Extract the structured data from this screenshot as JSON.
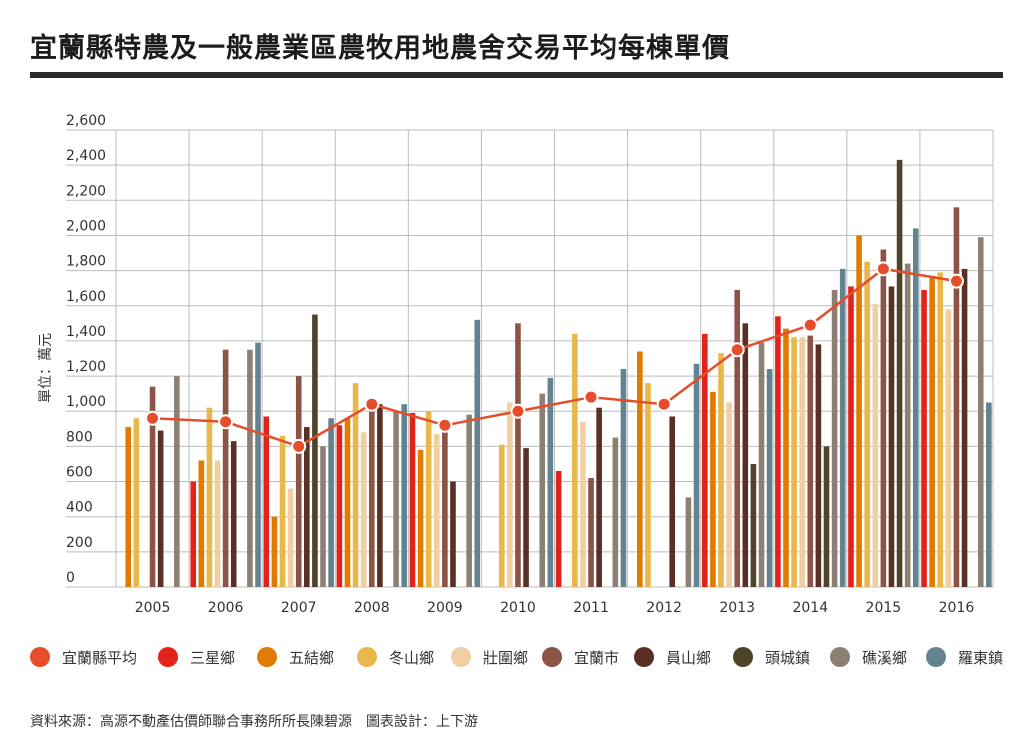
{
  "title": "宜蘭縣特農及一般農業區農牧用地農舍交易平均每棟單價",
  "source": "資料來源：高源不動產估價師聯合事務所所長陳碧源　圖表設計：上下游",
  "chart_data": {
    "type": "bar",
    "title": "宜蘭縣特農及一般農業區農牧用地農舍交易平均每棟單價",
    "ylabel": "單位：萬元",
    "xlabel": "",
    "ylim": [
      0,
      2600
    ],
    "yticks": [
      0,
      200,
      400,
      600,
      800,
      1000,
      1200,
      1400,
      1600,
      1800,
      2000,
      2200,
      2400,
      2600
    ],
    "ytick_labels": [
      "0",
      "200",
      "400",
      "600",
      "800",
      "1,000",
      "1,200",
      "1,400",
      "1,600",
      "1,800",
      "2,000",
      "2,200",
      "2,400",
      "2,600"
    ],
    "grid": true,
    "legend_position": "bottom",
    "categories": [
      "2005",
      "2006",
      "2007",
      "2008",
      "2009",
      "2010",
      "2011",
      "2012",
      "2013",
      "2014",
      "2015",
      "2016"
    ],
    "series": [
      {
        "name": "三星鄉",
        "color": "#e2231a",
        "values": [
          null,
          600,
          970,
          920,
          990,
          null,
          660,
          null,
          1440,
          1540,
          1710,
          1690
        ]
      },
      {
        "name": "五結鄉",
        "color": "#e07b00",
        "values": [
          910,
          720,
          400,
          960,
          780,
          null,
          null,
          1340,
          1110,
          1470,
          2000,
          1770
        ]
      },
      {
        "name": "冬山鄉",
        "color": "#e8b84b",
        "values": [
          960,
          1020,
          860,
          1160,
          1000,
          810,
          1440,
          1160,
          1330,
          1420,
          1850,
          1790
        ]
      },
      {
        "name": "壯圍鄉",
        "color": "#f2cfa2",
        "values": [
          null,
          720,
          560,
          880,
          870,
          1050,
          940,
          null,
          1050,
          1420,
          1610,
          1580
        ]
      },
      {
        "name": "宜蘭市",
        "color": "#8b5446",
        "values": [
          1140,
          1350,
          1200,
          1030,
          880,
          1500,
          620,
          null,
          1690,
          1430,
          1920,
          2160
        ]
      },
      {
        "name": "員山鄉",
        "color": "#5a3024",
        "values": [
          890,
          830,
          910,
          1040,
          600,
          790,
          1020,
          970,
          1500,
          1380,
          1710,
          1810
        ]
      },
      {
        "name": "頭城鎮",
        "color": "#4d4429",
        "values": [
          null,
          null,
          1550,
          null,
          null,
          null,
          null,
          null,
          700,
          800,
          2430,
          null
        ]
      },
      {
        "name": "礁溪鄉",
        "color": "#8c8074",
        "values": [
          1200,
          1350,
          800,
          1000,
          980,
          1100,
          850,
          510,
          1390,
          1690,
          1840,
          1990
        ]
      },
      {
        "name": "羅東鎮",
        "color": "#62838f",
        "values": [
          null,
          1390,
          960,
          1040,
          1520,
          1190,
          1240,
          1270,
          1240,
          1810,
          2040,
          1050
        ]
      }
    ],
    "average": {
      "name": "宜蘭縣平均",
      "color": "#e54d2b",
      "values": [
        960,
        940,
        800,
        1040,
        920,
        1000,
        1080,
        1040,
        1350,
        1490,
        1810,
        1740
      ]
    }
  }
}
